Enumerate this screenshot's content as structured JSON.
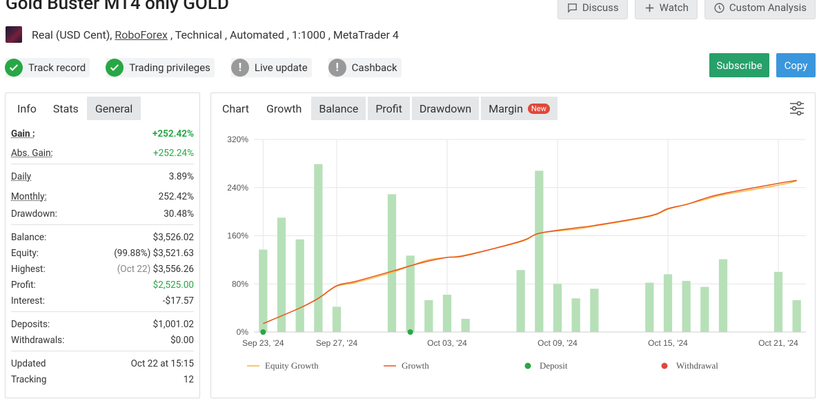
{
  "header": {
    "title": "Gold Buster MT4 only GOLD",
    "discuss": "Discuss",
    "watch": "Watch",
    "custom_analysis": "Custom Analysis"
  },
  "account": {
    "prefix": "Real (USD Cent),",
    "broker": "RoboForex",
    "suffix": ", Technical , Automated , 1:1000 , MetaTrader 4"
  },
  "badges": [
    "Track record",
    "Trading privileges",
    "Live update",
    "Cashback"
  ],
  "actions": {
    "subscribe": "Subscribe",
    "copy": "Copy"
  },
  "left_tabs": [
    "Info",
    "Stats",
    "General"
  ],
  "stats": {
    "gain_label": "Gain :",
    "gain": "+252.42%",
    "abs_gain_label": "Abs. Gain:",
    "abs_gain": "+252.24%",
    "daily_label": "Daily",
    "daily": "3.89%",
    "monthly_label": "Monthly:",
    "monthly": "252.42%",
    "drawdown_label": "Drawdown:",
    "drawdown": "30.48%",
    "balance_label": "Balance:",
    "balance": "$3,526.02",
    "equity_label": "Equity:",
    "equity_pct": "(99.88%)",
    "equity": "$3,521.63",
    "highest_label": "Highest:",
    "highest_date": "(Oct 22)",
    "highest": "$3,556.26",
    "profit_label": "Profit:",
    "profit": "$2,525.00",
    "interest_label": "Interest:",
    "interest": "-$17.57",
    "deposits_label": "Deposits:",
    "deposits": "$1,001.02",
    "withdrawals_label": "Withdrawals:",
    "withdrawals": "$0.00",
    "updated_label": "Updated",
    "updated": "Oct 22 at 15:15",
    "tracking_label": "Tracking",
    "tracking": "12"
  },
  "chart_tabs": [
    "Chart",
    "Growth",
    "Balance",
    "Profit",
    "Drawdown",
    "Margin"
  ],
  "new_badge": "New",
  "chart_data": {
    "type": "bar",
    "x": [
      "Sep 23",
      "Sep 24",
      "Sep 25",
      "Sep 26",
      "Sep 27",
      "Sep 28",
      "Sep 29",
      "Sep 30",
      "Oct 01",
      "Oct 02",
      "Oct 03",
      "Oct 04",
      "Oct 05",
      "Oct 06",
      "Oct 07",
      "Oct 08",
      "Oct 09",
      "Oct 10",
      "Oct 11",
      "Oct 12",
      "Oct 13",
      "Oct 14",
      "Oct 15",
      "Oct 16",
      "Oct 17",
      "Oct 18",
      "Oct 19",
      "Oct 20",
      "Oct 21",
      "Oct 22"
    ],
    "x_tick_labels": [
      "Sep 23, '24",
      "Sep 27, '24",
      "Oct 03, '24",
      "Oct 09, '24",
      "Oct 15, '24",
      "Oct 21, '24"
    ],
    "x_tick_dates": [
      "Sep 23",
      "Sep 27",
      "Oct 03",
      "Oct 09",
      "Oct 15",
      "Oct 21"
    ],
    "y_tick_labels": [
      "0%",
      "80%",
      "160%",
      "240%",
      "320%"
    ],
    "ylim": [
      0,
      320
    ],
    "bars": {
      "dates": [
        "Sep 23",
        "Sep 24",
        "Sep 25",
        "Sep 26",
        "Sep 27",
        "Sep 30",
        "Oct 01",
        "Oct 02",
        "Oct 03",
        "Oct 04",
        "Oct 07",
        "Oct 08",
        "Oct 09",
        "Oct 10",
        "Oct 11",
        "Oct 14",
        "Oct 15",
        "Oct 16",
        "Oct 17",
        "Oct 18",
        "Oct 21",
        "Oct 22"
      ],
      "values": [
        137,
        190,
        154,
        279,
        42,
        229,
        127,
        53,
        62,
        22,
        103,
        268,
        80,
        56,
        72,
        82,
        96,
        85,
        75,
        121,
        100,
        53
      ],
      "color": "#b7e0b8"
    },
    "series": [
      {
        "name": "Equity Growth",
        "color": "#f5b63c",
        "x": [
          "Sep 23",
          "Sep 25",
          "Sep 26",
          "Sep 27",
          "Sep 28",
          "Sep 30",
          "Oct 01",
          "Oct 02",
          "Oct 03",
          "Oct 04",
          "Oct 07",
          "Oct 08",
          "Oct 10",
          "Oct 11",
          "Oct 14",
          "Oct 15",
          "Oct 16",
          "Oct 17",
          "Oct 18",
          "Oct 21",
          "Oct 22"
        ],
        "y": [
          14,
          40,
          56,
          76,
          82,
          99,
          110,
          120,
          124,
          128,
          150,
          164,
          171,
          176,
          192,
          204,
          212,
          220,
          228,
          244,
          251
        ]
      },
      {
        "name": "Growth",
        "color": "#e8541e",
        "x": [
          "Sep 23",
          "Sep 25",
          "Sep 26",
          "Sep 27",
          "Sep 28",
          "Sep 30",
          "Oct 01",
          "Oct 02",
          "Oct 03",
          "Oct 04",
          "Oct 07",
          "Oct 08",
          "Oct 10",
          "Oct 11",
          "Oct 14",
          "Oct 15",
          "Oct 16",
          "Oct 17",
          "Oct 18",
          "Oct 21",
          "Oct 22"
        ],
        "y": [
          14,
          40,
          56,
          77,
          84,
          101,
          110,
          118,
          124,
          127,
          151,
          164,
          173,
          177,
          193,
          205,
          212,
          222,
          230,
          247,
          252
        ]
      }
    ],
    "deposits": [
      "Sep 23",
      "Oct 01"
    ],
    "withdrawals": [],
    "legend": [
      "Equity Growth",
      "Growth",
      "Deposit",
      "Withdrawal"
    ],
    "legend_position": "bottom",
    "grid": true
  }
}
